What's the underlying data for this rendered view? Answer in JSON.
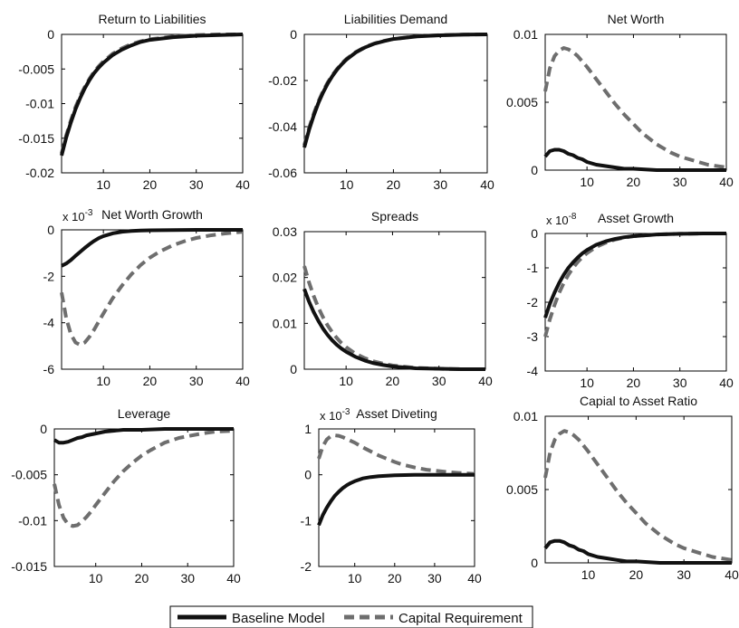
{
  "legend": {
    "placement": "bottom-center",
    "items": [
      {
        "label": "Baseline Model",
        "color": "#111111",
        "style": "solid"
      },
      {
        "label": "Capital Requirement",
        "color": "#6e6e6e",
        "style": "dashed"
      }
    ]
  },
  "chart_data": [
    {
      "type": "line",
      "title": "Return to Liabilities",
      "xlim": [
        1,
        40
      ],
      "ylim": [
        -0.02,
        0
      ],
      "xticks": [
        10,
        20,
        30,
        40
      ],
      "yticks": [
        0,
        -0.005,
        -0.01,
        -0.015,
        -0.02
      ],
      "ytick_labels": [
        "0",
        "-0.005",
        "-0.01",
        "-0.015",
        "-0.02"
      ],
      "multiplier": "",
      "series": [
        {
          "name": "Baseline Model",
          "x": [
            1,
            2,
            3,
            4,
            5,
            6,
            7,
            8,
            9,
            10,
            12,
            14,
            16,
            18,
            20,
            25,
            30,
            35,
            40
          ],
          "y": [
            -0.0175,
            -0.0149,
            -0.0127,
            -0.0108,
            -0.0092,
            -0.0078,
            -0.0066,
            -0.0056,
            -0.0048,
            -0.0041,
            -0.003,
            -0.0022,
            -0.0016,
            -0.0011,
            -0.0008,
            -0.0004,
            -0.0002,
            -0.0001,
            0
          ]
        },
        {
          "name": "Capital Requirement",
          "x": [
            1,
            2,
            3,
            4,
            5,
            6,
            7,
            8,
            9,
            10,
            12,
            14,
            16,
            18,
            20,
            25,
            30,
            35,
            40
          ],
          "y": [
            -0.0172,
            -0.0146,
            -0.0124,
            -0.0105,
            -0.0089,
            -0.0076,
            -0.0064,
            -0.0054,
            -0.0046,
            -0.0039,
            -0.0028,
            -0.002,
            -0.0014,
            -0.001,
            -0.0007,
            -0.0003,
            -0.0001,
            0,
            0
          ]
        }
      ]
    },
    {
      "type": "line",
      "title": "Liabilities Demand",
      "xlim": [
        1,
        40
      ],
      "ylim": [
        -0.06,
        0
      ],
      "xticks": [
        10,
        20,
        30,
        40
      ],
      "yticks": [
        0,
        -0.02,
        -0.04,
        -0.06
      ],
      "ytick_labels": [
        "0",
        "-0.02",
        "-0.04",
        "-0.06"
      ],
      "multiplier": "",
      "series": [
        {
          "name": "Baseline Model",
          "x": [
            1,
            2,
            3,
            4,
            5,
            6,
            7,
            8,
            9,
            10,
            12,
            14,
            16,
            18,
            20,
            25,
            30,
            35,
            40
          ],
          "y": [
            -0.049,
            -0.0415,
            -0.0352,
            -0.0298,
            -0.0252,
            -0.0213,
            -0.018,
            -0.0152,
            -0.0129,
            -0.0109,
            -0.0078,
            -0.0056,
            -0.004,
            -0.0029,
            -0.002,
            -0.0009,
            -0.0004,
            -0.0001,
            0
          ]
        },
        {
          "name": "Capital Requirement",
          "x": [
            1,
            2,
            3,
            4,
            5,
            6,
            7,
            8,
            9,
            10,
            12,
            14,
            16,
            18,
            20,
            25,
            30,
            35,
            40
          ],
          "y": [
            -0.048,
            -0.0406,
            -0.0344,
            -0.0291,
            -0.0246,
            -0.0208,
            -0.0176,
            -0.0149,
            -0.0126,
            -0.0106,
            -0.0076,
            -0.0054,
            -0.0039,
            -0.0028,
            -0.002,
            -0.0008,
            -0.0003,
            -0.0001,
            0
          ]
        }
      ]
    },
    {
      "type": "line",
      "title": "Net Worth",
      "xlim": [
        1,
        40
      ],
      "ylim": [
        0,
        0.01
      ],
      "xticks": [
        10,
        20,
        30,
        40
      ],
      "yticks": [
        0,
        0.005,
        0.01
      ],
      "ytick_labels": [
        "0",
        "0.005",
        "0.01"
      ],
      "multiplier": "",
      "series": [
        {
          "name": "Baseline Model",
          "x": [
            1,
            2,
            3,
            4,
            5,
            6,
            7,
            8,
            9,
            10,
            12,
            14,
            16,
            18,
            20,
            25,
            30,
            35,
            40
          ],
          "y": [
            0.001,
            0.0014,
            0.0015,
            0.0015,
            0.0014,
            0.0012,
            0.0011,
            0.0009,
            0.0008,
            0.0006,
            0.0004,
            0.0003,
            0.0002,
            0.0001,
            0.0001,
            0,
            0,
            0,
            0
          ]
        },
        {
          "name": "Capital Requirement",
          "x": [
            1,
            2,
            3,
            4,
            5,
            6,
            7,
            8,
            9,
            10,
            12,
            14,
            16,
            18,
            20,
            22,
            25,
            28,
            30,
            33,
            36,
            40
          ],
          "y": [
            0.0058,
            0.0075,
            0.0084,
            0.0088,
            0.009,
            0.0089,
            0.0087,
            0.0084,
            0.008,
            0.0076,
            0.0067,
            0.0058,
            0.0049,
            0.0041,
            0.0034,
            0.0027,
            0.0019,
            0.0013,
            0.001,
            0.0007,
            0.0004,
            0.0002
          ]
        }
      ]
    },
    {
      "type": "line",
      "title": "Net Worth Growth",
      "xlim": [
        1,
        40
      ],
      "ylim": [
        -6,
        0
      ],
      "xticks": [
        10,
        20,
        30,
        40
      ],
      "yticks": [
        0,
        -2,
        -4,
        -6
      ],
      "ytick_labels": [
        "0",
        "-2",
        "-4",
        "-6"
      ],
      "multiplier": "x 10",
      "multiplier_exp": "-3",
      "series": [
        {
          "name": "Baseline Model",
          "x": [
            1,
            2,
            3,
            4,
            5,
            6,
            7,
            8,
            9,
            10,
            12,
            14,
            16,
            18,
            20,
            25,
            30,
            35,
            40
          ],
          "y": [
            -1.55,
            -1.45,
            -1.3,
            -1.12,
            -0.95,
            -0.78,
            -0.62,
            -0.48,
            -0.36,
            -0.27,
            -0.15,
            -0.08,
            -0.05,
            -0.03,
            -0.02,
            -0.01,
            0,
            0,
            0
          ]
        },
        {
          "name": "Capital Requirement",
          "x": [
            1,
            2,
            3,
            4,
            5,
            6,
            7,
            8,
            9,
            10,
            12,
            14,
            16,
            18,
            20,
            22,
            25,
            28,
            30,
            33,
            36,
            40
          ],
          "y": [
            -2.7,
            -3.8,
            -4.5,
            -4.85,
            -4.95,
            -4.85,
            -4.6,
            -4.3,
            -3.95,
            -3.6,
            -2.95,
            -2.4,
            -1.92,
            -1.52,
            -1.2,
            -0.95,
            -0.66,
            -0.45,
            -0.35,
            -0.24,
            -0.16,
            -0.08
          ]
        }
      ]
    },
    {
      "type": "line",
      "title": "Spreads",
      "xlim": [
        1,
        40
      ],
      "ylim": [
        0,
        0.03
      ],
      "xticks": [
        10,
        20,
        30,
        40
      ],
      "yticks": [
        0,
        0.01,
        0.02,
        0.03
      ],
      "ytick_labels": [
        "0",
        "0.01",
        "0.02",
        "0.03"
      ],
      "multiplier": "",
      "series": [
        {
          "name": "Baseline Model",
          "x": [
            1,
            2,
            3,
            4,
            5,
            6,
            7,
            8,
            9,
            10,
            12,
            14,
            16,
            18,
            20,
            25,
            30,
            35,
            40
          ],
          "y": [
            0.0175,
            0.0148,
            0.0125,
            0.0106,
            0.0089,
            0.0075,
            0.0063,
            0.0053,
            0.0045,
            0.0038,
            0.0027,
            0.0019,
            0.0013,
            0.0009,
            0.0006,
            0.0002,
            0.0001,
            0,
            0
          ]
        },
        {
          "name": "Capital Requirement",
          "x": [
            1,
            2,
            3,
            4,
            5,
            6,
            7,
            8,
            9,
            10,
            12,
            14,
            16,
            18,
            20,
            25,
            30,
            35,
            40
          ],
          "y": [
            0.0225,
            0.019,
            0.016,
            0.0135,
            0.0114,
            0.0096,
            0.0081,
            0.0068,
            0.0057,
            0.0048,
            0.0034,
            0.0024,
            0.0017,
            0.0012,
            0.0008,
            0.0003,
            0.0001,
            0,
            0
          ]
        }
      ]
    },
    {
      "type": "line",
      "title": "Asset Growth",
      "xlim": [
        1,
        40
      ],
      "ylim": [
        -4,
        0
      ],
      "xticks": [
        10,
        20,
        30,
        40
      ],
      "yticks": [
        0,
        -1,
        -2,
        -3,
        -4
      ],
      "ytick_labels": [
        "0",
        "-1",
        "-2",
        "-3",
        "-4"
      ],
      "multiplier": "x 10",
      "multiplier_exp": "-8",
      "series": [
        {
          "name": "Baseline Model",
          "x": [
            1,
            2,
            3,
            4,
            5,
            6,
            7,
            8,
            9,
            10,
            12,
            14,
            16,
            18,
            20,
            25,
            30,
            35,
            40
          ],
          "y": [
            -2.45,
            -2.05,
            -1.72,
            -1.44,
            -1.2,
            -1.0,
            -0.84,
            -0.7,
            -0.58,
            -0.48,
            -0.33,
            -0.23,
            -0.16,
            -0.11,
            -0.08,
            -0.03,
            -0.01,
            0,
            0
          ]
        },
        {
          "name": "Capital Requirement",
          "x": [
            1,
            2,
            3,
            4,
            5,
            6,
            7,
            8,
            9,
            10,
            12,
            14,
            16,
            18,
            20,
            25,
            30,
            35,
            40
          ],
          "y": [
            -3.0,
            -2.5,
            -2.08,
            -1.73,
            -1.44,
            -1.2,
            -1.0,
            -0.83,
            -0.69,
            -0.57,
            -0.39,
            -0.27,
            -0.18,
            -0.12,
            -0.08,
            -0.03,
            -0.01,
            0,
            0
          ]
        }
      ]
    },
    {
      "type": "line",
      "title": "Leverage",
      "xlim": [
        1,
        40
      ],
      "ylim": [
        -0.015,
        0
      ],
      "xticks": [
        10,
        20,
        30,
        40
      ],
      "yticks": [
        0,
        -0.005,
        -0.01,
        -0.015
      ],
      "ytick_labels": [
        "0",
        "-0.005",
        "-0.01",
        "-0.015"
      ],
      "multiplier": "",
      "series": [
        {
          "name": "Baseline Model",
          "x": [
            1,
            2,
            3,
            4,
            5,
            6,
            7,
            8,
            9,
            10,
            12,
            14,
            16,
            18,
            20,
            25,
            30,
            35,
            40
          ],
          "y": [
            -0.0012,
            -0.0015,
            -0.0015,
            -0.0014,
            -0.0012,
            -0.001,
            -0.0009,
            -0.0007,
            -0.0006,
            -0.0005,
            -0.0003,
            -0.0002,
            -0.0001,
            -0.0001,
            -0.0001,
            0,
            0,
            0,
            0
          ]
        },
        {
          "name": "Capital Requirement",
          "x": [
            1,
            2,
            3,
            4,
            5,
            6,
            7,
            8,
            9,
            10,
            12,
            14,
            16,
            18,
            20,
            22,
            25,
            28,
            30,
            33,
            36,
            40
          ],
          "y": [
            -0.006,
            -0.0083,
            -0.0097,
            -0.0104,
            -0.0106,
            -0.0105,
            -0.0101,
            -0.0096,
            -0.009,
            -0.0083,
            -0.007,
            -0.0057,
            -0.0046,
            -0.0037,
            -0.0029,
            -0.0023,
            -0.0015,
            -0.001,
            -0.0008,
            -0.0005,
            -0.0003,
            -0.0002
          ]
        }
      ]
    },
    {
      "type": "line",
      "title": "Asset Diveting",
      "xlim": [
        1,
        40
      ],
      "ylim": [
        -2,
        1
      ],
      "xticks": [
        10,
        20,
        30,
        40
      ],
      "yticks": [
        1,
        0,
        -1,
        -2
      ],
      "ytick_labels": [
        "1",
        "0",
        "-1",
        "-2"
      ],
      "multiplier": "x 10",
      "multiplier_exp": "-3",
      "series": [
        {
          "name": "Baseline Model",
          "x": [
            1,
            2,
            3,
            4,
            5,
            6,
            7,
            8,
            9,
            10,
            12,
            14,
            16,
            18,
            20,
            25,
            30,
            35,
            40
          ],
          "y": [
            -1.1,
            -0.88,
            -0.72,
            -0.58,
            -0.46,
            -0.37,
            -0.29,
            -0.23,
            -0.18,
            -0.14,
            -0.08,
            -0.05,
            -0.03,
            -0.02,
            -0.01,
            0,
            0,
            0,
            0
          ]
        },
        {
          "name": "Capital Requirement",
          "x": [
            1,
            2,
            3,
            4,
            5,
            6,
            7,
            8,
            9,
            10,
            12,
            14,
            16,
            18,
            20,
            22,
            25,
            28,
            30,
            33,
            36,
            40
          ],
          "y": [
            0.35,
            0.62,
            0.77,
            0.84,
            0.86,
            0.85,
            0.82,
            0.78,
            0.74,
            0.7,
            0.6,
            0.51,
            0.42,
            0.35,
            0.28,
            0.22,
            0.16,
            0.11,
            0.09,
            0.06,
            0.04,
            0.02
          ]
        }
      ]
    },
    {
      "type": "line",
      "title": "Capial to Asset Ratio",
      "xlim": [
        1,
        40
      ],
      "ylim": [
        0,
        0.01
      ],
      "xticks": [
        10,
        20,
        30,
        40
      ],
      "yticks": [
        0,
        0.005,
        0.01
      ],
      "ytick_labels": [
        "0",
        "0.005",
        "0.01"
      ],
      "multiplier": "",
      "series": [
        {
          "name": "Baseline Model",
          "x": [
            1,
            2,
            3,
            4,
            5,
            6,
            7,
            8,
            9,
            10,
            12,
            14,
            16,
            18,
            20,
            25,
            30,
            35,
            40
          ],
          "y": [
            0.001,
            0.0014,
            0.0015,
            0.0015,
            0.0014,
            0.0012,
            0.0011,
            0.0009,
            0.0008,
            0.0006,
            0.0004,
            0.0003,
            0.0002,
            0.0001,
            0.0001,
            0,
            0,
            0,
            0
          ]
        },
        {
          "name": "Capital Requirement",
          "x": [
            1,
            2,
            3,
            4,
            5,
            6,
            7,
            8,
            9,
            10,
            12,
            14,
            16,
            18,
            20,
            22,
            25,
            28,
            30,
            33,
            36,
            40
          ],
          "y": [
            0.0058,
            0.0075,
            0.0084,
            0.0088,
            0.009,
            0.0089,
            0.0087,
            0.0084,
            0.008,
            0.0076,
            0.0067,
            0.0058,
            0.0049,
            0.0041,
            0.0034,
            0.0027,
            0.0019,
            0.0013,
            0.001,
            0.0007,
            0.0004,
            0.0002
          ]
        }
      ]
    }
  ]
}
